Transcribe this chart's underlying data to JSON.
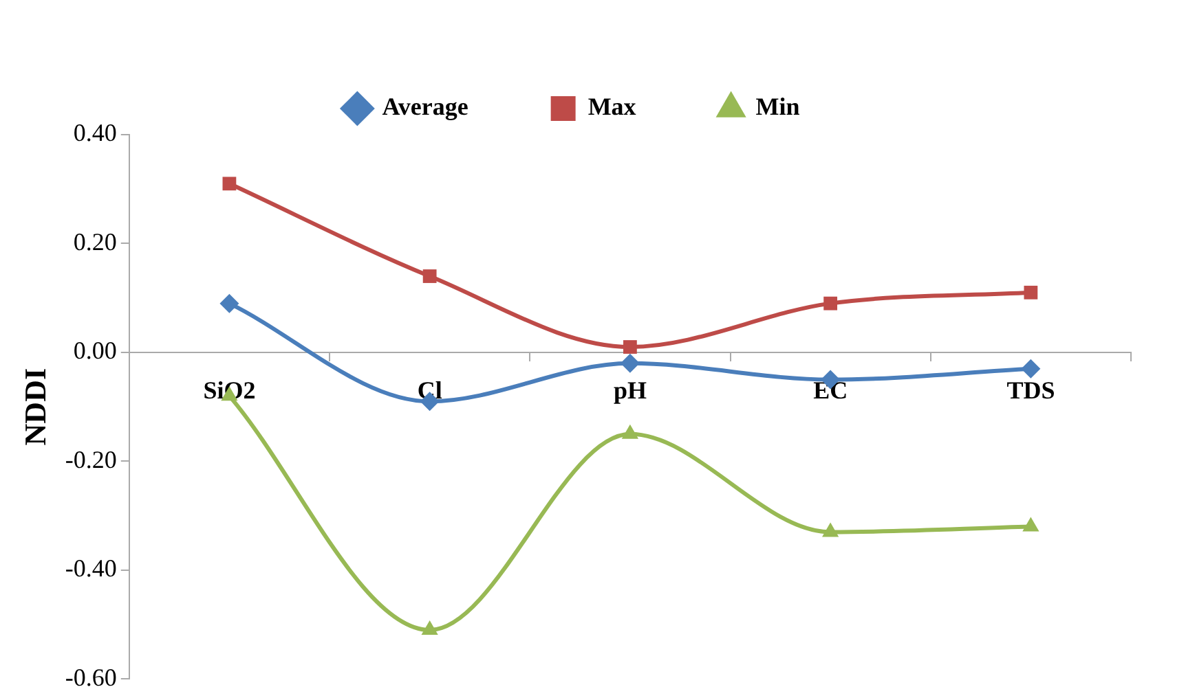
{
  "chart_data": {
    "type": "line",
    "ylabel": "NDDI",
    "categories": [
      "SiO2",
      "Cl",
      "pH",
      "EC",
      "TDS"
    ],
    "series": [
      {
        "name": "Average",
        "color": "#4a7ebb",
        "marker": "diamond",
        "values": [
          0.09,
          -0.09,
          -0.02,
          -0.05,
          -0.03
        ]
      },
      {
        "name": "Max",
        "color": "#be4b48",
        "marker": "square",
        "values": [
          0.31,
          0.14,
          0.01,
          0.09,
          0.11
        ]
      },
      {
        "name": "Min",
        "color": "#98b954",
        "marker": "triangle",
        "values": [
          -0.08,
          -0.51,
          -0.15,
          -0.33,
          -0.32
        ]
      }
    ],
    "ylim": [
      -0.6,
      0.4
    ],
    "yticks": [
      {
        "value": -0.6,
        "label": "-0.60"
      },
      {
        "value": -0.4,
        "label": "-0.40"
      },
      {
        "value": -0.2,
        "label": "-0.20"
      },
      {
        "value": 0,
        "label": "0.00"
      },
      {
        "value": 0.2,
        "label": "0.20"
      },
      {
        "value": 0.4,
        "label": "0.40"
      }
    ],
    "grid": false,
    "legend": "top"
  }
}
